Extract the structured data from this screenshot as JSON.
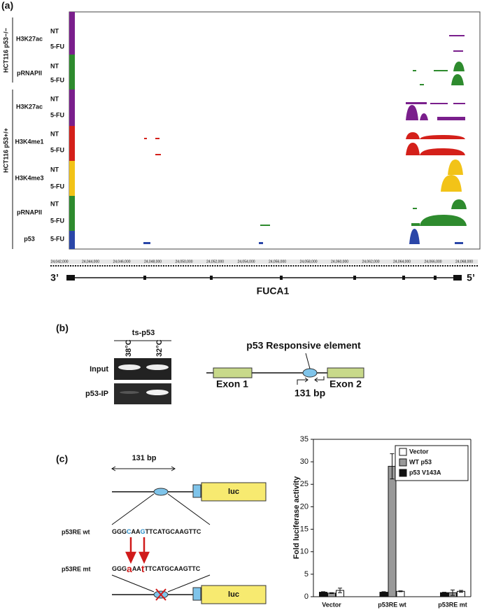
{
  "panel_a": {
    "label": "(a)",
    "groups": [
      "HCT116 p53−/−",
      "HCT116 p53+/+"
    ],
    "marks": [
      "H3K27ac",
      "pRNAPII",
      "H3K27ac",
      "H3K4me1",
      "H3K4me3",
      "pRNAPII",
      "p53"
    ],
    "conditions": [
      "NT",
      "5-FU",
      "NT",
      "5-FU",
      "NT",
      "5-FU",
      "NT",
      "5-FU",
      "NT",
      "5-FU",
      "NT",
      "5-FU",
      "5-FU"
    ],
    "genome_labels": [
      "24,042,000",
      "24,044,000",
      "24,046,000",
      "24,048,000",
      "24,050,000",
      "24,052,000",
      "24,054,000",
      "24,056,000",
      "24,058,000",
      "24,060,000",
      "24,062,000",
      "24,064,000",
      "24,066,000",
      "24,068,000"
    ],
    "gene": {
      "left": "3’",
      "name": "FUCA1",
      "right": "5’"
    }
  },
  "panel_b": {
    "label": "(b)",
    "construct": "ts-p53",
    "temps": [
      "38°C",
      "32°C"
    ],
    "lanes": [
      "Input",
      "p53-IP"
    ],
    "element": "p53 Responsive element",
    "exons": [
      "Exon 1",
      "Exon 2"
    ],
    "amplicon": "131 bp"
  },
  "panel_c": {
    "label": "(c)",
    "length": "131 bp",
    "reporter": "luc",
    "wt": {
      "name": "p53RE wt",
      "parts": [
        "GGG",
        "C",
        "AA",
        "G",
        "TTCATGCAAGTTC"
      ]
    },
    "mt": {
      "name": "p53RE mt",
      "parts": [
        "GGG",
        "a",
        "AA",
        "t",
        "TTCATGCAAGTTC"
      ]
    }
  },
  "chart_data": {
    "type": "bar",
    "ylabel": "Fold luciferase activity",
    "categories": [
      "Vector",
      "p53RE wt",
      "p53RE mt"
    ],
    "series": [
      {
        "name": "Vector",
        "color": "#ffffff",
        "values": [
          1.4,
          1.2,
          1.2
        ],
        "errors": [
          0.5,
          0.1,
          0.2
        ]
      },
      {
        "name": "WT p53",
        "color": "#999999",
        "values": [
          0.8,
          29,
          0.9
        ],
        "errors": [
          0.1,
          2.8,
          0.6
        ]
      },
      {
        "name": "p53 V143A",
        "color": "#111111",
        "values": [
          1.0,
          1.0,
          0.9
        ],
        "errors": [
          0.1,
          0.1,
          0.1
        ]
      }
    ],
    "ylim": [
      0,
      35
    ],
    "yticks": [
      0,
      5,
      10,
      15,
      20,
      25,
      30,
      35
    ]
  }
}
